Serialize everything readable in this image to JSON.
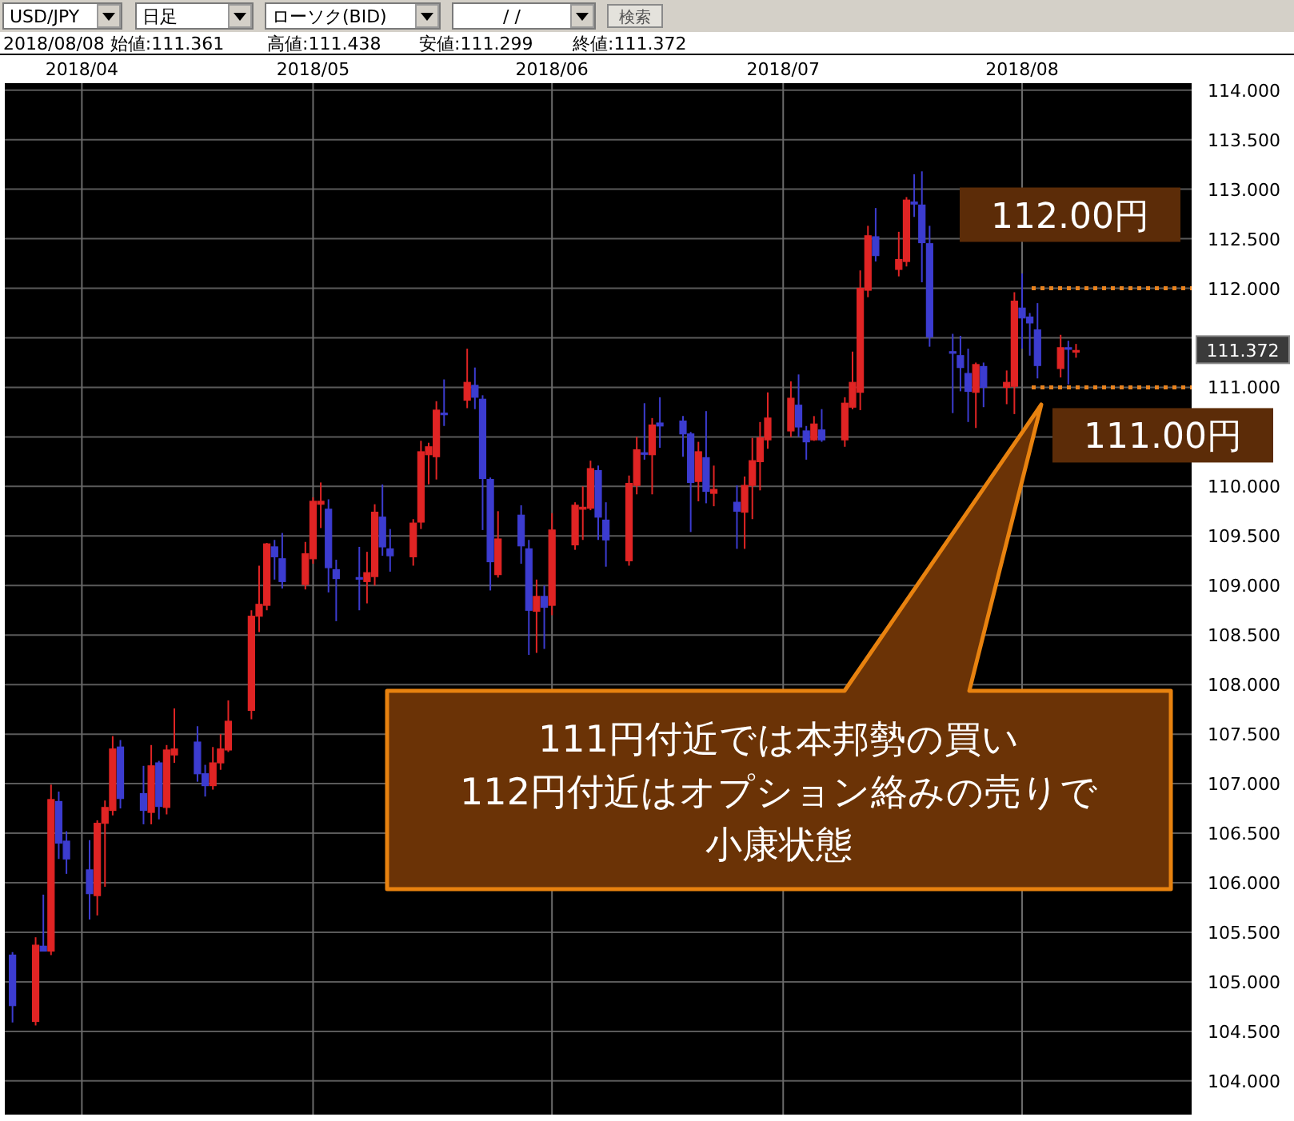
{
  "chart_data": {
    "type": "candlestick",
    "annotations": [
      "USD/JPY",
      "日足",
      "ローソク(BID)",
      "/ /",
      "検索",
      "2018/08/08 始値:111.361",
      "高値:111.438",
      "安値:111.299",
      "終値:111.372",
      "111円付近では本邦勢の買い",
      "112円付近はオプション絡みの売りで",
      "小康状態",
      "111.372"
    ],
    "x": [
      "2018-03-23",
      "2018-03-26",
      "2018-03-27",
      "2018-03-28",
      "2018-03-29",
      "2018-03-30",
      "2018-04-02",
      "2018-04-03",
      "2018-04-04",
      "2018-04-05",
      "2018-04-06",
      "2018-04-09",
      "2018-04-10",
      "2018-04-11",
      "2018-04-12",
      "2018-04-13",
      "2018-04-16",
      "2018-04-17",
      "2018-04-18",
      "2018-04-19",
      "2018-04-20",
      "2018-04-23",
      "2018-04-24",
      "2018-04-25",
      "2018-04-26",
      "2018-04-27",
      "2018-04-30",
      "2018-05-01",
      "2018-05-02",
      "2018-05-03",
      "2018-05-04",
      "2018-05-07",
      "2018-05-08",
      "2018-05-09",
      "2018-05-10",
      "2018-05-11",
      "2018-05-14",
      "2018-05-15",
      "2018-05-16",
      "2018-05-17",
      "2018-05-18",
      "2018-05-21",
      "2018-05-22",
      "2018-05-23",
      "2018-05-24",
      "2018-05-25",
      "2018-05-28",
      "2018-05-29",
      "2018-05-30",
      "2018-05-31",
      "2018-06-01",
      "2018-06-04",
      "2018-06-05",
      "2018-06-06",
      "2018-06-07",
      "2018-06-08",
      "2018-06-11",
      "2018-06-12",
      "2018-06-13",
      "2018-06-14",
      "2018-06-15",
      "2018-06-18",
      "2018-06-19",
      "2018-06-20",
      "2018-06-21",
      "2018-06-22",
      "2018-06-25",
      "2018-06-26",
      "2018-06-27",
      "2018-06-28",
      "2018-06-29",
      "2018-07-02",
      "2018-07-03",
      "2018-07-04",
      "2018-07-05",
      "2018-07-06",
      "2018-07-09",
      "2018-07-10",
      "2018-07-11",
      "2018-07-12",
      "2018-07-13",
      "2018-07-16",
      "2018-07-17",
      "2018-07-18",
      "2018-07-19",
      "2018-07-20",
      "2018-07-23",
      "2018-07-24",
      "2018-07-25",
      "2018-07-26",
      "2018-07-27",
      "2018-07-30",
      "2018-07-31",
      "2018-08-01",
      "2018-08-02",
      "2018-08-03",
      "2018-08-06",
      "2018-08-07",
      "2018-08-08"
    ],
    "ohlc": [
      [
        105.27,
        105.3,
        104.59,
        104.76
      ],
      [
        104.6,
        105.45,
        104.56,
        105.37
      ],
      [
        105.36,
        105.88,
        105.31,
        105.31
      ],
      [
        105.31,
        106.99,
        105.27,
        106.84
      ],
      [
        106.82,
        106.92,
        106.24,
        106.4
      ],
      [
        106.42,
        106.52,
        106.09,
        106.24
      ],
      [
        106.13,
        106.43,
        105.63,
        105.89
      ],
      [
        105.87,
        106.63,
        105.67,
        106.6
      ],
      [
        106.6,
        106.83,
        105.96,
        106.76
      ],
      [
        106.73,
        107.48,
        106.68,
        107.35
      ],
      [
        107.37,
        107.44,
        106.75,
        106.85
      ],
      [
        106.9,
        107.18,
        106.59,
        106.73
      ],
      [
        106.71,
        107.39,
        106.59,
        107.18
      ],
      [
        107.21,
        107.23,
        106.64,
        106.77
      ],
      [
        106.76,
        107.39,
        106.69,
        107.34
      ],
      [
        107.29,
        107.76,
        107.21,
        107.35
      ],
      [
        107.42,
        107.58,
        107.02,
        107.1
      ],
      [
        107.1,
        107.19,
        106.87,
        106.98
      ],
      [
        106.98,
        107.37,
        106.94,
        107.21
      ],
      [
        107.21,
        107.5,
        107.14,
        107.35
      ],
      [
        107.34,
        107.84,
        107.32,
        107.63
      ],
      [
        107.74,
        108.75,
        107.65,
        108.69
      ],
      [
        108.69,
        109.2,
        108.53,
        108.81
      ],
      [
        108.8,
        109.43,
        108.75,
        109.42
      ],
      [
        109.39,
        109.46,
        109.06,
        109.29
      ],
      [
        109.27,
        109.53,
        108.97,
        109.04
      ],
      [
        109.01,
        109.44,
        108.96,
        109.32
      ],
      [
        109.27,
        109.89,
        109.22,
        109.85
      ],
      [
        109.82,
        110.04,
        109.58,
        109.85
      ],
      [
        109.77,
        109.87,
        108.93,
        109.18
      ],
      [
        109.16,
        109.26,
        108.64,
        109.07
      ],
      [
        109.08,
        109.39,
        108.75,
        109.07
      ],
      [
        109.04,
        109.34,
        108.82,
        109.13
      ],
      [
        109.09,
        109.82,
        109.0,
        109.74
      ],
      [
        109.69,
        110.02,
        109.3,
        109.39
      ],
      [
        109.37,
        109.57,
        109.14,
        109.3
      ],
      [
        109.29,
        109.67,
        109.2,
        109.63
      ],
      [
        109.64,
        110.46,
        109.57,
        110.35
      ],
      [
        110.32,
        110.44,
        110.02,
        110.4
      ],
      [
        110.3,
        110.86,
        110.07,
        110.77
      ],
      [
        110.74,
        111.08,
        110.61,
        110.73
      ],
      [
        110.87,
        111.39,
        110.79,
        111.05
      ],
      [
        111.02,
        111.2,
        110.78,
        110.9
      ],
      [
        110.88,
        110.92,
        109.56,
        110.08
      ],
      [
        110.07,
        110.09,
        108.95,
        109.24
      ],
      [
        109.11,
        109.75,
        109.08,
        109.47
      ],
      [
        109.71,
        109.81,
        109.22,
        109.4
      ],
      [
        109.37,
        109.46,
        108.3,
        108.75
      ],
      [
        108.74,
        109.06,
        108.32,
        108.89
      ],
      [
        108.89,
        109.0,
        108.36,
        108.78
      ],
      [
        108.8,
        109.73,
        108.7,
        109.56
      ],
      [
        109.41,
        109.84,
        109.36,
        109.81
      ],
      [
        109.77,
        110.0,
        109.46,
        109.79
      ],
      [
        109.78,
        110.26,
        109.76,
        110.18
      ],
      [
        110.16,
        110.21,
        109.46,
        109.69
      ],
      [
        109.66,
        109.84,
        109.19,
        109.46
      ],
      [
        109.25,
        110.11,
        109.2,
        110.03
      ],
      [
        110.01,
        110.5,
        109.92,
        110.37
      ],
      [
        110.34,
        110.84,
        110.27,
        110.33
      ],
      [
        110.32,
        110.69,
        109.92,
        110.62
      ],
      [
        110.64,
        110.9,
        110.39,
        110.61
      ],
      [
        110.66,
        110.71,
        110.3,
        110.53
      ],
      [
        110.53,
        110.55,
        109.54,
        110.04
      ],
      [
        110.05,
        110.45,
        109.85,
        110.35
      ],
      [
        110.29,
        110.76,
        109.83,
        109.95
      ],
      [
        109.93,
        110.21,
        109.8,
        109.97
      ],
      [
        109.84,
        110.01,
        109.37,
        109.75
      ],
      [
        109.74,
        110.1,
        109.37,
        110.01
      ],
      [
        110.01,
        110.49,
        109.67,
        110.26
      ],
      [
        110.25,
        110.65,
        109.96,
        110.49
      ],
      [
        110.47,
        110.95,
        110.38,
        110.69
      ],
      [
        110.56,
        111.06,
        110.5,
        110.89
      ],
      [
        110.82,
        111.13,
        110.5,
        110.6
      ],
      [
        110.56,
        110.61,
        110.27,
        110.45
      ],
      [
        110.47,
        110.71,
        110.46,
        110.63
      ],
      [
        110.57,
        110.78,
        110.45,
        110.47
      ],
      [
        110.47,
        110.9,
        110.4,
        110.84
      ],
      [
        110.8,
        111.36,
        110.78,
        111.05
      ],
      [
        110.95,
        112.18,
        110.77,
        112.0
      ],
      [
        111.98,
        112.63,
        111.91,
        112.53
      ],
      [
        112.52,
        112.81,
        112.27,
        112.33
      ],
      [
        112.19,
        112.57,
        112.12,
        112.29
      ],
      [
        112.27,
        112.92,
        112.22,
        112.89
      ],
      [
        112.87,
        113.15,
        112.72,
        112.85
      ],
      [
        112.84,
        113.18,
        112.06,
        112.46
      ],
      [
        112.45,
        112.63,
        111.41,
        111.51
      ],
      [
        111.36,
        111.54,
        110.74,
        111.35
      ],
      [
        111.32,
        111.52,
        110.96,
        111.2
      ],
      [
        111.14,
        111.39,
        110.65,
        110.96
      ],
      [
        110.95,
        111.25,
        110.59,
        111.23
      ],
      [
        111.21,
        111.25,
        110.8,
        111.0
      ],
      [
        111.0,
        111.17,
        110.83,
        111.05
      ],
      [
        111.01,
        111.96,
        110.73,
        111.87
      ],
      [
        111.8,
        112.15,
        111.39,
        111.7
      ],
      [
        111.71,
        111.75,
        111.32,
        111.65
      ],
      [
        111.58,
        111.85,
        111.09,
        111.22
      ],
      [
        111.19,
        111.53,
        111.1,
        111.4
      ],
      [
        111.4,
        111.47,
        111.03,
        111.39
      ],
      [
        111.361,
        111.438,
        111.299,
        111.372
      ]
    ],
    "colors": [
      "#3c3cd0",
      "#e02424",
      "#3c3cd0",
      "#e02424",
      "#3c3cd0",
      "#3c3cd0",
      "#3c3cd0",
      "#e02424",
      "#e02424",
      "#e02424",
      "#3c3cd0",
      "#3c3cd0",
      "#e02424",
      "#3c3cd0",
      "#e02424",
      "#e02424",
      "#3c3cd0",
      "#3c3cd0",
      "#e02424",
      "#e02424",
      "#e02424",
      "#e02424",
      "#e02424",
      "#e02424",
      "#3c3cd0",
      "#3c3cd0",
      "#e02424",
      "#e02424",
      "#e02424",
      "#3c3cd0",
      "#3c3cd0",
      "#3c3cd0",
      "#e02424",
      "#e02424",
      "#3c3cd0",
      "#3c3cd0",
      "#e02424",
      "#e02424",
      "#e02424",
      "#e02424",
      "#3c3cd0",
      "#e02424",
      "#3c3cd0",
      "#3c3cd0",
      "#3c3cd0",
      "#e02424",
      "#3c3cd0",
      "#3c3cd0",
      "#e02424",
      "#3c3cd0",
      "#e02424",
      "#e02424",
      "#e02424",
      "#e02424",
      "#3c3cd0",
      "#3c3cd0",
      "#e02424",
      "#e02424",
      "#3c3cd0",
      "#e02424",
      "#3c3cd0",
      "#3c3cd0",
      "#3c3cd0",
      "#e02424",
      "#3c3cd0",
      "#e02424",
      "#3c3cd0",
      "#e02424",
      "#e02424",
      "#e02424",
      "#e02424",
      "#e02424",
      "#3c3cd0",
      "#3c3cd0",
      "#e02424",
      "#3c3cd0",
      "#e02424",
      "#e02424",
      "#e02424",
      "#e02424",
      "#3c3cd0",
      "#e02424",
      "#e02424",
      "#3c3cd0",
      "#3c3cd0",
      "#3c3cd0",
      "#3c3cd0",
      "#3c3cd0",
      "#3c3cd0",
      "#e02424",
      "#3c3cd0",
      "#e02424",
      "#e02424",
      "#3c3cd0",
      "#3c3cd0",
      "#3c3cd0",
      "#e02424",
      "#3c3cd0",
      "#e02424"
    ],
    "xlim": [
      "2018-03-22",
      "2018-08-23"
    ],
    "xticks": [
      {
        "value": "2018-04",
        "label": "2018/04"
      },
      {
        "value": "2018-05",
        "label": "2018/05"
      },
      {
        "value": "2018-06",
        "label": "2018/06"
      },
      {
        "value": "2018-07",
        "label": "2018/07"
      },
      {
        "value": "2018-08",
        "label": "2018/08"
      }
    ],
    "ylim": [
      103.66,
      114.07
    ],
    "yticks": [
      {
        "value": 104,
        "label": "104.000"
      },
      {
        "value": 104.5,
        "label": "104.500"
      },
      {
        "value": 105,
        "label": "105.000"
      },
      {
        "value": 105.5,
        "label": "105.500"
      },
      {
        "value": 106,
        "label": "106.000"
      },
      {
        "value": 106.5,
        "label": "106.500"
      },
      {
        "value": 107,
        "label": "107.000"
      },
      {
        "value": 107.5,
        "label": "107.500"
      },
      {
        "value": 108,
        "label": "108.000"
      },
      {
        "value": 108.5,
        "label": "108.500"
      },
      {
        "value": 109,
        "label": "109.000"
      },
      {
        "value": 109.5,
        "label": "109.500"
      },
      {
        "value": 110,
        "label": "110.000"
      },
      {
        "value": 110.5,
        "label": null
      },
      {
        "value": 111,
        "label": "111.000"
      },
      {
        "value": 111.5,
        "label": null
      },
      {
        "value": 112,
        "label": "112.000"
      },
      {
        "value": 112.5,
        "label": "112.500"
      },
      {
        "value": 113,
        "label": "113.000"
      },
      {
        "value": 113.5,
        "label": "113.500"
      },
      {
        "value": 114,
        "label": "114.000"
      }
    ],
    "grid": true,
    "ref_lines": [
      {
        "axis": "y",
        "value": 112,
        "label": "112.00円",
        "color": "#e8821e",
        "line_style": "dotted"
      },
      {
        "axis": "y",
        "value": 111,
        "label": "111.00円",
        "color": "#e8821e",
        "line_style": "dotted"
      }
    ]
  }
}
